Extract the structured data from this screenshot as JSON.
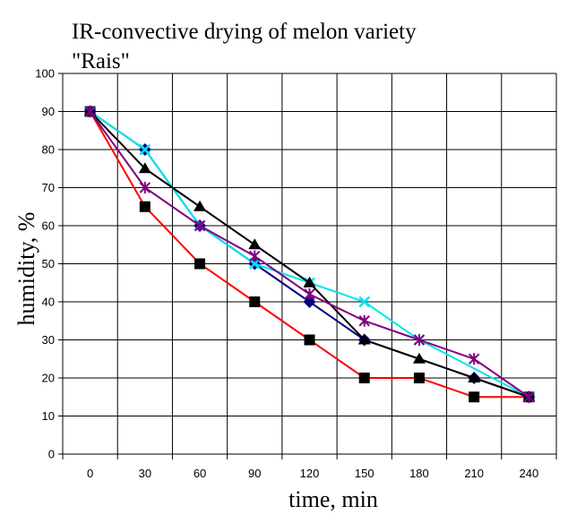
{
  "chart_data": {
    "type": "line",
    "title_lines": [
      "IR-convective drying of melon variety",
      "\"Rais\""
    ],
    "xlabel": "time, min",
    "ylabel": "humidity, %",
    "x": [
      0,
      30,
      60,
      90,
      120,
      150,
      180,
      210,
      240
    ],
    "xlim": [
      -15,
      255
    ],
    "ylim": [
      0,
      100
    ],
    "yticks": [
      0,
      10,
      20,
      30,
      40,
      50,
      60,
      70,
      80,
      90,
      100
    ],
    "grid": true,
    "legend": "none",
    "series": [
      {
        "values": [
          90,
          65,
          50,
          40,
          30,
          20,
          20,
          15,
          15
        ],
        "color": "#ff0000",
        "marker": "square"
      },
      {
        "values": [
          90,
          80,
          60,
          50,
          40,
          30,
          null,
          20,
          15
        ],
        "color": "#000080",
        "marker": "diamond"
      },
      {
        "values": [
          90,
          80,
          60,
          50,
          45,
          40,
          30,
          null,
          15
        ],
        "color": "#00e5ee",
        "marker": "x"
      },
      {
        "values": [
          90,
          75,
          65,
          55,
          45,
          30,
          25,
          20,
          15
        ],
        "color": "#000000",
        "marker": "triangle"
      },
      {
        "values": [
          90,
          70,
          60,
          52,
          42,
          35,
          30,
          25,
          15
        ],
        "color": "#800080",
        "marker": "star"
      }
    ]
  }
}
